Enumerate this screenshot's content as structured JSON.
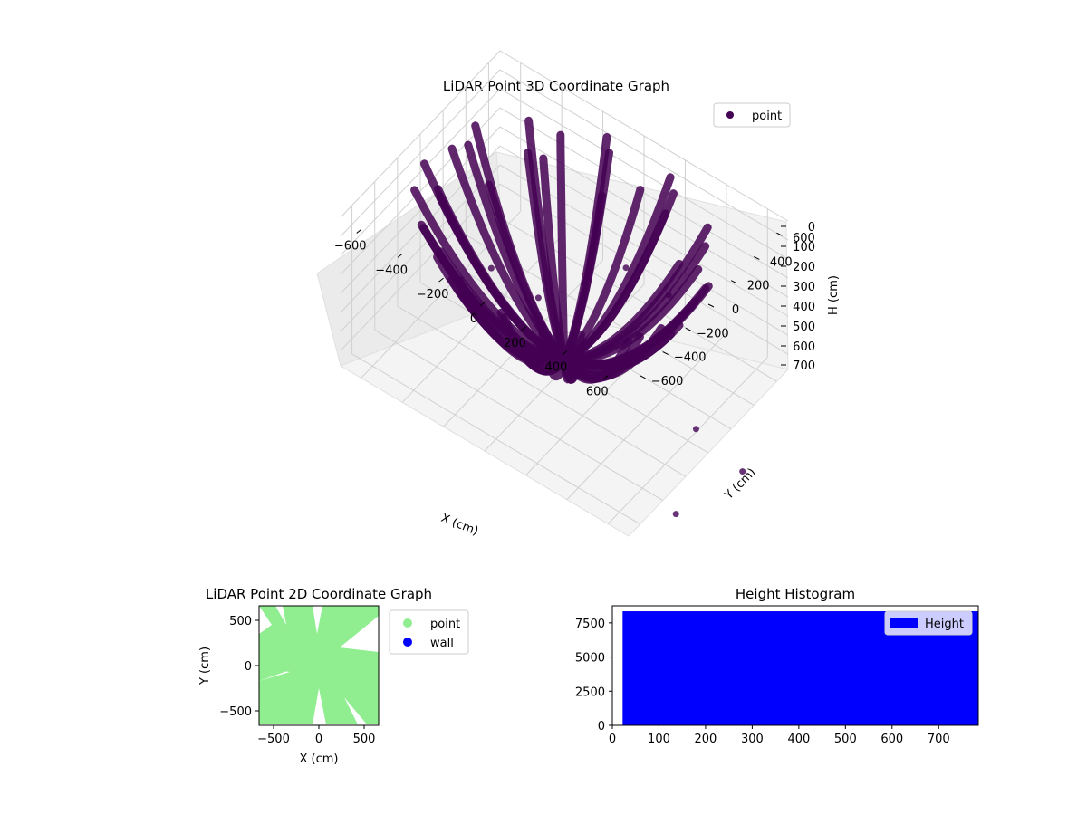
{
  "chart_data": [
    {
      "type": "scatter",
      "projection": "3d",
      "title": "LiDAR Point 3D Coordinate Graph",
      "xlabel": "X (cm)",
      "ylabel": "Y (cm)",
      "zlabel": "H (cm)",
      "xticks": [
        "−600",
        "−400",
        "−200",
        "0",
        "200",
        "400",
        "600"
      ],
      "yticks": [
        "−600",
        "−400",
        "−200",
        "0",
        "200",
        "400",
        "600"
      ],
      "zticks": [
        "0",
        "100",
        "200",
        "300",
        "400",
        "500",
        "600",
        "700"
      ],
      "xlim": [
        -700,
        700
      ],
      "ylim": [
        -700,
        700
      ],
      "zlim": [
        0,
        780
      ],
      "z_axis_inverted": true,
      "legend": {
        "placement": "upper-right",
        "entries": [
          {
            "label": "point",
            "color": "#440154"
          }
        ]
      },
      "series": [
        {
          "name": "point",
          "color": "#440154"
        }
      ]
    },
    {
      "type": "scatter",
      "title": "LiDAR Point 2D Coordinate Graph",
      "xlabel": "X (cm)",
      "ylabel": "Y (cm)",
      "xticks": [
        "−500",
        "0",
        "500"
      ],
      "yticks": [
        "500",
        "0",
        "−500"
      ],
      "xlim": [
        -660,
        660
      ],
      "ylim": [
        -660,
        660
      ],
      "legend": {
        "placement": "outside-right",
        "entries": [
          {
            "label": "point",
            "color": "#90ee90"
          },
          {
            "label": "wall",
            "color": "#0000ff"
          }
        ]
      },
      "series": [
        {
          "name": "point",
          "color": "#90ee90"
        },
        {
          "name": "wall",
          "color": "#0000ff"
        }
      ]
    },
    {
      "type": "bar",
      "title": "Height Histogram",
      "xticks": [
        "0",
        "100",
        "200",
        "300",
        "400",
        "500",
        "600",
        "700"
      ],
      "yticks": [
        "0",
        "2500",
        "5000",
        "7500"
      ],
      "xlim": [
        0,
        785
      ],
      "ylim": [
        0,
        8750
      ],
      "bin_range": [
        22,
        785
      ],
      "count": 8350,
      "legend": {
        "placement": "upper-right",
        "entries": [
          {
            "label": "Height",
            "color": "#0000ff"
          }
        ]
      },
      "series": [
        {
          "name": "Height",
          "color": "#0000ff"
        }
      ]
    }
  ]
}
